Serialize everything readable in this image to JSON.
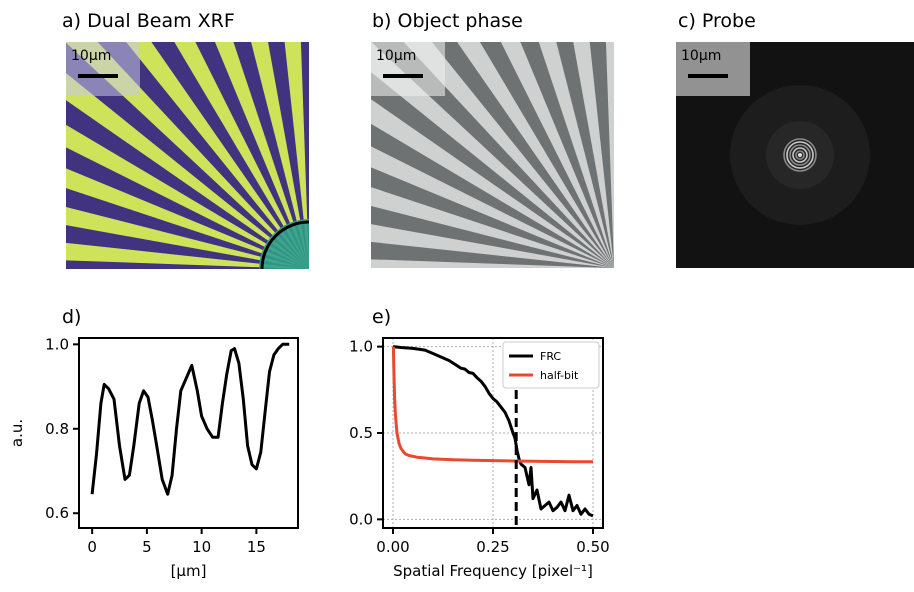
{
  "panels": {
    "a": {
      "title": "a) Dual Beam XRF",
      "scale_label": "10μm"
    },
    "b": {
      "title": "b) Object phase",
      "scale_label": "10μm"
    },
    "c": {
      "title": "c) Probe",
      "scale_label": "10μm"
    },
    "d": {
      "title": "d)"
    },
    "e": {
      "title": "e)"
    }
  },
  "colors": {
    "xrf_background": "#41337f",
    "xrf_spoke": "#cfe35a",
    "xrf_mid": "#2f9f8c",
    "phase_background": "#cfd1d1",
    "phase_spoke": "#6f7272",
    "probe_background": "#121212",
    "scale_box": "#bcbcbc",
    "frc_line": "#000000",
    "halfbit_line": "#e8492f",
    "grid": "#b0b0b0"
  },
  "chart_data": [
    {
      "id": "d",
      "type": "line",
      "title": "d)",
      "xlabel": "[μm]",
      "ylabel": "a.u.",
      "xlim": [
        -1.2,
        18.8
      ],
      "ylim": [
        0.565,
        1.015
      ],
      "xticks": [
        0,
        5,
        10,
        15
      ],
      "xtick_labels": [
        "0",
        "5",
        "10",
        "15"
      ],
      "yticks": [
        0.6,
        0.8,
        1.0
      ],
      "ytick_labels": [
        "0.6",
        "0.8",
        "1.0"
      ],
      "grid": false,
      "series": [
        {
          "x": [
            0.0,
            0.4,
            0.8,
            1.1,
            1.5,
            2.0,
            2.5,
            3.0,
            3.4,
            3.8,
            4.3,
            4.7,
            5.1,
            5.5,
            5.9,
            6.4,
            6.9,
            7.3,
            7.7,
            8.1,
            8.6,
            9.1,
            9.6,
            10.0,
            10.5,
            11.0,
            11.5,
            11.9,
            12.3,
            12.7,
            13.0,
            13.4,
            13.8,
            14.2,
            14.6,
            15.0,
            15.4,
            15.8,
            16.2,
            16.6,
            17.0,
            17.4,
            17.7,
            18.0
          ],
          "y": [
            0.645,
            0.74,
            0.86,
            0.905,
            0.895,
            0.87,
            0.76,
            0.68,
            0.69,
            0.76,
            0.86,
            0.89,
            0.875,
            0.82,
            0.76,
            0.68,
            0.645,
            0.69,
            0.8,
            0.89,
            0.92,
            0.95,
            0.89,
            0.83,
            0.8,
            0.78,
            0.78,
            0.86,
            0.93,
            0.985,
            0.99,
            0.955,
            0.87,
            0.76,
            0.715,
            0.705,
            0.745,
            0.84,
            0.935,
            0.975,
            0.99,
            1.0,
            1.0,
            1.0
          ]
        }
      ]
    },
    {
      "id": "e",
      "type": "line",
      "title": "e)",
      "xlabel": "Spatial Frequency [pixel⁻¹]",
      "ylabel": "",
      "xlim": [
        -0.025,
        0.525
      ],
      "ylim": [
        -0.05,
        1.05
      ],
      "xticks": [
        0.0,
        0.25,
        0.5
      ],
      "xtick_labels": [
        "0.00",
        "0.25",
        "0.50"
      ],
      "yticks": [
        0.0,
        0.5,
        1.0
      ],
      "ytick_labels": [
        "0.0",
        "0.5",
        "1.0"
      ],
      "grid": true,
      "legend_position": "top-right",
      "vertical_marker_x": 0.308,
      "series": [
        {
          "name": "FRC",
          "x": [
            0.0,
            0.02,
            0.05,
            0.08,
            0.1,
            0.12,
            0.14,
            0.16,
            0.17,
            0.18,
            0.19,
            0.2,
            0.21,
            0.22,
            0.23,
            0.24,
            0.25,
            0.26,
            0.27,
            0.28,
            0.29,
            0.3,
            0.305,
            0.31,
            0.315,
            0.32,
            0.33,
            0.34,
            0.345,
            0.35,
            0.36,
            0.37,
            0.38,
            0.39,
            0.4,
            0.41,
            0.42,
            0.43,
            0.44,
            0.45,
            0.46,
            0.47,
            0.48,
            0.49,
            0.5
          ],
          "y": [
            1.0,
            0.995,
            0.99,
            0.98,
            0.96,
            0.94,
            0.92,
            0.89,
            0.875,
            0.87,
            0.85,
            0.845,
            0.82,
            0.8,
            0.77,
            0.73,
            0.7,
            0.68,
            0.65,
            0.62,
            0.57,
            0.5,
            0.47,
            0.4,
            0.35,
            0.32,
            0.3,
            0.2,
            0.3,
            0.12,
            0.17,
            0.06,
            0.08,
            0.1,
            0.05,
            0.07,
            0.1,
            0.05,
            0.14,
            0.05,
            0.08,
            0.03,
            0.06,
            0.03,
            0.02
          ]
        },
        {
          "name": "half-bit",
          "x": [
            0.001,
            0.002,
            0.004,
            0.006,
            0.008,
            0.01,
            0.015,
            0.02,
            0.03,
            0.04,
            0.06,
            0.08,
            0.1,
            0.15,
            0.2,
            0.25,
            0.3,
            0.35,
            0.4,
            0.45,
            0.5
          ],
          "y": [
            1.0,
            0.88,
            0.7,
            0.61,
            0.55,
            0.5,
            0.44,
            0.41,
            0.38,
            0.37,
            0.36,
            0.355,
            0.35,
            0.345,
            0.342,
            0.34,
            0.338,
            0.336,
            0.335,
            0.334,
            0.333
          ]
        }
      ]
    }
  ]
}
